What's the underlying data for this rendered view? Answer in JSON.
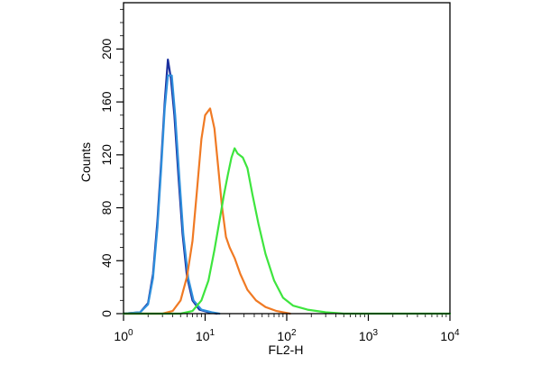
{
  "chart_data": {
    "type": "line",
    "xlabel": "FL2-H",
    "ylabel": "Counts",
    "xscale": "log",
    "xlim": [
      1,
      10000
    ],
    "ylim": [
      0,
      235
    ],
    "x_ticks": [
      {
        "value": 1,
        "base": "10",
        "exp": "0"
      },
      {
        "value": 10,
        "base": "10",
        "exp": "1"
      },
      {
        "value": 100,
        "base": "10",
        "exp": "2"
      },
      {
        "value": 1000,
        "base": "10",
        "exp": "3"
      },
      {
        "value": 10000,
        "base": "10",
        "exp": "4"
      }
    ],
    "y_ticks": [
      0,
      40,
      80,
      120,
      160,
      200
    ],
    "grid": false,
    "series": [
      {
        "color": "#1a2f9e",
        "points": [
          [
            1,
            0
          ],
          [
            1.6,
            1
          ],
          [
            2.0,
            8
          ],
          [
            2.3,
            30
          ],
          [
            2.6,
            70
          ],
          [
            2.9,
            115
          ],
          [
            3.2,
            160
          ],
          [
            3.5,
            192
          ],
          [
            3.8,
            178
          ],
          [
            4.2,
            150
          ],
          [
            4.7,
            105
          ],
          [
            5.3,
            60
          ],
          [
            6.0,
            28
          ],
          [
            7.0,
            10
          ],
          [
            8.5,
            3
          ],
          [
            11,
            1
          ],
          [
            14,
            0
          ]
        ]
      },
      {
        "color": "#2f8fdc",
        "points": [
          [
            1,
            0
          ],
          [
            1.6,
            1
          ],
          [
            2.0,
            7
          ],
          [
            2.3,
            27
          ],
          [
            2.6,
            65
          ],
          [
            2.9,
            110
          ],
          [
            3.2,
            155
          ],
          [
            3.5,
            180
          ],
          [
            3.9,
            180
          ],
          [
            4.3,
            150
          ],
          [
            4.8,
            105
          ],
          [
            5.4,
            60
          ],
          [
            6.2,
            27
          ],
          [
            7.2,
            10
          ],
          [
            9,
            3
          ],
          [
            12,
            1
          ],
          [
            15,
            0
          ]
        ]
      },
      {
        "color": "#f07a24",
        "points": [
          [
            1,
            0
          ],
          [
            3,
            0
          ],
          [
            4,
            2
          ],
          [
            5,
            10
          ],
          [
            6,
            28
          ],
          [
            7,
            55
          ],
          [
            8,
            95
          ],
          [
            9,
            132
          ],
          [
            10,
            150
          ],
          [
            11.5,
            155
          ],
          [
            13,
            140
          ],
          [
            14.5,
            110
          ],
          [
            16,
            82
          ],
          [
            18,
            58
          ],
          [
            20,
            50
          ],
          [
            23,
            42
          ],
          [
            27,
            30
          ],
          [
            33,
            18
          ],
          [
            42,
            10
          ],
          [
            55,
            5
          ],
          [
            75,
            2
          ],
          [
            110,
            0
          ]
        ]
      },
      {
        "color": "#3ee53e",
        "points": [
          [
            1,
            0
          ],
          [
            5,
            0
          ],
          [
            7,
            2
          ],
          [
            9,
            10
          ],
          [
            11,
            25
          ],
          [
            13,
            48
          ],
          [
            15,
            70
          ],
          [
            17,
            90
          ],
          [
            19,
            105
          ],
          [
            21,
            118
          ],
          [
            23,
            125
          ],
          [
            25,
            121
          ],
          [
            29,
            118
          ],
          [
            33,
            110
          ],
          [
            38,
            90
          ],
          [
            45,
            68
          ],
          [
            55,
            45
          ],
          [
            70,
            25
          ],
          [
            90,
            12
          ],
          [
            120,
            6
          ],
          [
            180,
            3
          ],
          [
            300,
            1
          ],
          [
            500,
            0
          ],
          [
            10000,
            0
          ]
        ]
      }
    ]
  }
}
